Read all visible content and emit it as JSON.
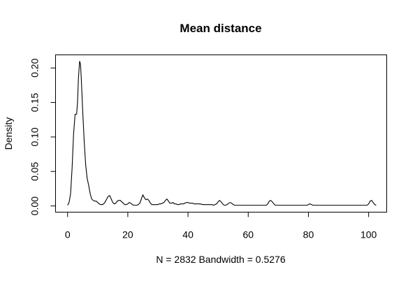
{
  "chart_data": {
    "type": "line",
    "title": "Mean distance",
    "xlabel": "N = 2832   Bandwidth = 0.5276",
    "ylabel": "Density",
    "xlim": [
      -4,
      106
    ],
    "ylim": [
      -0.009,
      0.219
    ],
    "x_ticks": [
      0,
      20,
      40,
      60,
      80,
      100
    ],
    "y_ticks": [
      0.0,
      0.05,
      0.1,
      0.15,
      0.2
    ],
    "x_tick_labels": [
      "0",
      "20",
      "40",
      "60",
      "80",
      "100"
    ],
    "y_tick_labels": [
      "0.00",
      "0.05",
      "0.10",
      "0.15",
      "0.20"
    ],
    "grid": false,
    "legend": "none",
    "series": [
      {
        "x": [
          0.0,
          0.5,
          1.0,
          1.5,
          2.0,
          2.5,
          3.0,
          3.3,
          3.6,
          4.0,
          4.3,
          4.6,
          5.0,
          5.5,
          6.0,
          6.5,
          7.0,
          7.5,
          8.0,
          8.5,
          9.0,
          9.5,
          10.0,
          10.5,
          11.0,
          11.5,
          12.0,
          12.5,
          13.0,
          13.5,
          14.0,
          14.5,
          15.0,
          15.5,
          16.0,
          16.5,
          17.0,
          17.5,
          18.0,
          18.5,
          19.0,
          19.5,
          20.0,
          20.5,
          21.0,
          21.5,
          22.0,
          22.5,
          23.0,
          23.5,
          24.0,
          24.5,
          25.0,
          25.5,
          26.0,
          26.5,
          27.0,
          27.5,
          28.0,
          28.5,
          29.0,
          29.5,
          30.0,
          30.5,
          31.0,
          31.5,
          32.0,
          32.5,
          33.0,
          33.5,
          34.0,
          34.5,
          35.0,
          35.5,
          36.0,
          36.5,
          37.0,
          37.5,
          38.0,
          38.5,
          39.0,
          39.5,
          40.0,
          40.5,
          41.0,
          41.5,
          42.0,
          43.0,
          44.0,
          45.0,
          46.0,
          47.0,
          48.0,
          48.5,
          49.0,
          49.5,
          50.0,
          50.5,
          51.0,
          51.5,
          52.0,
          52.5,
          53.0,
          53.5,
          54.0,
          54.5,
          55.0,
          55.5,
          56.0,
          57.0,
          58.0,
          60.0,
          62.0,
          64.0,
          65.0,
          65.5,
          66.0,
          66.5,
          67.0,
          67.5,
          68.0,
          68.5,
          69.0,
          70.0,
          72.0,
          75.0,
          78.0,
          79.0,
          79.5,
          80.0,
          80.5,
          81.0,
          81.5,
          82.0,
          83.0,
          85.0,
          90.0,
          95.0,
          98.0,
          99.0,
          99.5,
          100.0,
          100.5,
          101.0,
          101.5,
          102.0,
          102.5
        ],
        "y": [
          0.001,
          0.005,
          0.018,
          0.055,
          0.105,
          0.133,
          0.133,
          0.15,
          0.185,
          0.21,
          0.205,
          0.18,
          0.14,
          0.095,
          0.06,
          0.04,
          0.03,
          0.018,
          0.01,
          0.008,
          0.007,
          0.007,
          0.005,
          0.003,
          0.002,
          0.002,
          0.003,
          0.006,
          0.01,
          0.014,
          0.015,
          0.01,
          0.005,
          0.003,
          0.004,
          0.007,
          0.008,
          0.008,
          0.006,
          0.004,
          0.002,
          0.002,
          0.003,
          0.005,
          0.004,
          0.002,
          0.001,
          0.001,
          0.001,
          0.002,
          0.004,
          0.01,
          0.016,
          0.012,
          0.009,
          0.01,
          0.008,
          0.004,
          0.002,
          0.002,
          0.002,
          0.002,
          0.002,
          0.003,
          0.003,
          0.004,
          0.005,
          0.008,
          0.01,
          0.007,
          0.004,
          0.004,
          0.005,
          0.003,
          0.003,
          0.002,
          0.002,
          0.003,
          0.003,
          0.003,
          0.004,
          0.005,
          0.005,
          0.004,
          0.004,
          0.004,
          0.003,
          0.003,
          0.003,
          0.002,
          0.002,
          0.002,
          0.002,
          0.001,
          0.002,
          0.003,
          0.006,
          0.008,
          0.006,
          0.003,
          0.001,
          0.001,
          0.002,
          0.004,
          0.005,
          0.004,
          0.002,
          0.001,
          0.001,
          0.001,
          0.001,
          0.001,
          0.001,
          0.001,
          0.001,
          0.001,
          0.001,
          0.003,
          0.007,
          0.008,
          0.006,
          0.003,
          0.001,
          0.001,
          0.001,
          0.001,
          0.001,
          0.001,
          0.001,
          0.002,
          0.003,
          0.002,
          0.001,
          0.001,
          0.001,
          0.001,
          0.001,
          0.001,
          0.001,
          0.001,
          0.001,
          0.003,
          0.007,
          0.008,
          0.005,
          0.002,
          0.001
        ]
      }
    ]
  }
}
